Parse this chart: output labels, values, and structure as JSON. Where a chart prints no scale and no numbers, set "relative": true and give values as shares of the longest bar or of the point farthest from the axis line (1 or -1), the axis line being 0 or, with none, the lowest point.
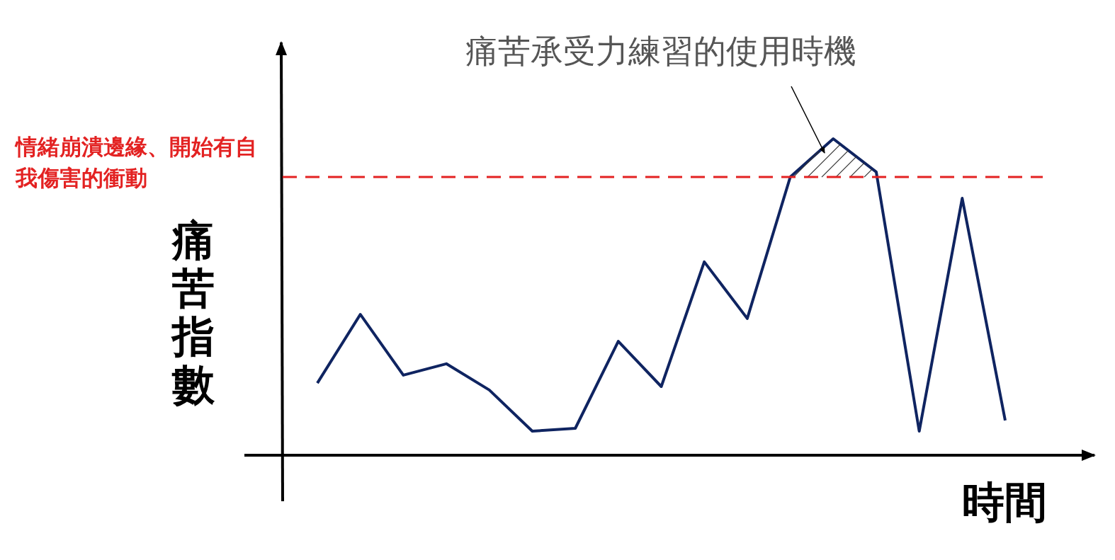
{
  "chart_data": {
    "type": "line",
    "relative": true,
    "xlabel": "時間",
    "ylabel": "痛苦指數",
    "categories": [
      null,
      null,
      null,
      null,
      null,
      null,
      null,
      null,
      null,
      null,
      null,
      null,
      null,
      null,
      null,
      null,
      null
    ],
    "series": [
      {
        "color": "#0f2461",
        "values": [
          0.228,
          0.445,
          0.253,
          0.289,
          0.206,
          0.076,
          0.085,
          0.36,
          0.217,
          0.611,
          0.432,
          0.879,
          1,
          0.895,
          0.076,
          0.812,
          0.11
        ]
      }
    ],
    "ref_lines": [
      {
        "axis": "y",
        "value": 0.879,
        "label": "情緒崩潰邊緣、開始有自我傷害的衝動",
        "color": "#e32222",
        "line_style": "dashed"
      }
    ],
    "annotations": [
      "痛苦承受力練習的使用時機"
    ],
    "legend": false,
    "marker": "none",
    "line_style": "solid",
    "grid": false
  }
}
